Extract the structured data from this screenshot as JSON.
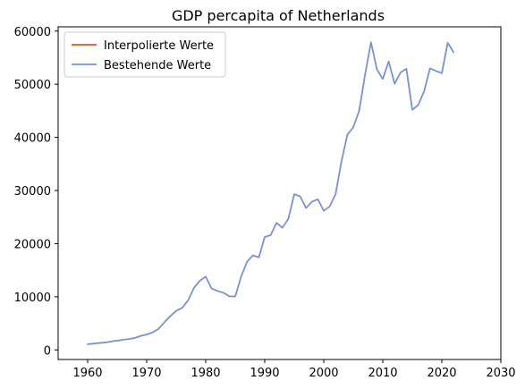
{
  "chart_data": {
    "type": "line",
    "title": "GDP percapita of Netherlands",
    "xlabel": "",
    "ylabel": "",
    "xlim": [
      1955,
      2030
    ],
    "ylim": [
      -1800,
      60800
    ],
    "xticks": [
      1960,
      1970,
      1980,
      1990,
      2000,
      2010,
      2020,
      2030
    ],
    "yticks": [
      0,
      10000,
      20000,
      30000,
      40000,
      50000,
      60000
    ],
    "grid": false,
    "legend_position": "top-left",
    "series": [
      {
        "name": "Interpolierte Werte",
        "color": "#e8541e",
        "x": [
          1960,
          1961,
          1962,
          1963,
          1964,
          1965,
          1966,
          1967,
          1968,
          1969,
          1970,
          1971,
          1972,
          1973,
          1974,
          1975,
          1976,
          1977,
          1978,
          1979,
          1980,
          1981,
          1982,
          1983,
          1984,
          1985,
          1986,
          1987,
          1988,
          1989,
          1990,
          1991,
          1992,
          1993,
          1994,
          1995,
          1996,
          1997,
          1998,
          1999,
          2000,
          2001,
          2002,
          2003,
          2004,
          2005,
          2006,
          2007,
          2008,
          2009,
          2010,
          2011,
          2012,
          2013,
          2014,
          2015,
          2016,
          2017,
          2018,
          2019,
          2020,
          2021,
          2022
        ],
        "values": [
          1070,
          1200,
          1300,
          1400,
          1600,
          1750,
          1900,
          2050,
          2250,
          2650,
          2900,
          3300,
          3950,
          5200,
          6350,
          7350,
          7900,
          9300,
          11650,
          13000,
          13800,
          11550,
          11100,
          10750,
          10100,
          10050,
          13800,
          16600,
          17800,
          17400,
          21250,
          21600,
          23900,
          23000,
          24700,
          29300,
          28900,
          26700,
          27900,
          28350,
          26200,
          27000,
          29300,
          35500,
          40500,
          41900,
          45000,
          51800,
          57900,
          52800,
          51000,
          54300,
          50100,
          52200,
          52900,
          45200,
          46100,
          48700,
          53000,
          52500,
          52100,
          57800,
          56000
        ]
      },
      {
        "name": "Bestehende Werte",
        "color": "#6f95df",
        "x": [
          1960,
          1961,
          1962,
          1963,
          1964,
          1965,
          1966,
          1967,
          1968,
          1969,
          1970,
          1971,
          1972,
          1973,
          1974,
          1975,
          1976,
          1977,
          1978,
          1979,
          1980,
          1981,
          1982,
          1983,
          1984,
          1985,
          1986,
          1987,
          1988,
          1989,
          1990,
          1991,
          1992,
          1993,
          1994,
          1995,
          1996,
          1997,
          1998,
          1999,
          2000,
          2001,
          2002,
          2003,
          2004,
          2005,
          2006,
          2007,
          2008,
          2009,
          2010,
          2011,
          2012,
          2013,
          2014,
          2015,
          2016,
          2017,
          2018,
          2019,
          2020,
          2021,
          2022
        ],
        "values": [
          1070,
          1200,
          1300,
          1400,
          1600,
          1750,
          1900,
          2050,
          2250,
          2650,
          2900,
          3300,
          3950,
          5200,
          6350,
          7350,
          7900,
          9300,
          11650,
          13000,
          13800,
          11550,
          11100,
          10750,
          10100,
          10050,
          13800,
          16600,
          17800,
          17400,
          21250,
          21600,
          23900,
          23000,
          24700,
          29300,
          28900,
          26700,
          27900,
          28350,
          26200,
          27000,
          29300,
          35500,
          40500,
          41900,
          45000,
          51800,
          57900,
          52800,
          51000,
          54300,
          50100,
          52200,
          52900,
          45200,
          46100,
          48700,
          53000,
          52500,
          52100,
          57800,
          56000
        ]
      }
    ]
  }
}
